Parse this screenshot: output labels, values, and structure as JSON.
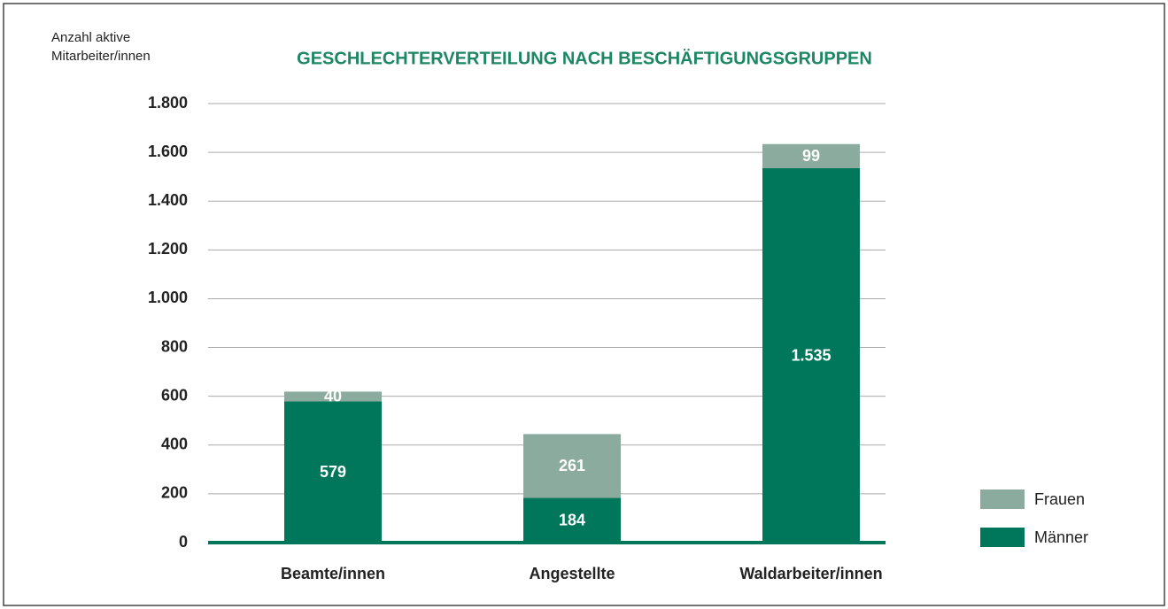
{
  "chart_data": {
    "type": "stacked_bar",
    "title": "GESCHLECHTERVERTEILUNG NACH BESCHÄFTIGUNGSGRUPPEN",
    "y_label": "Anzahl aktive Mitarbeiter/innen",
    "categories": [
      "Beamte/innen",
      "Angestellte",
      "Waldarbeiter/innen"
    ],
    "series": [
      {
        "name": "Männer",
        "color": "#00775a",
        "values": [
          579,
          184,
          1535
        ],
        "value_labels": [
          "579",
          "184",
          "1.535"
        ]
      },
      {
        "name": "Frauen",
        "color": "#8aab9d",
        "values": [
          40,
          261,
          99
        ]
      }
    ],
    "ylim": [
      0,
      1800
    ],
    "yticks": [
      0,
      200,
      400,
      600,
      800,
      {
        "value": 1000,
        "label": "1.000"
      },
      {
        "value": 1200,
        "label": "1.200"
      },
      {
        "value": 1400,
        "label": "1.400"
      },
      {
        "value": 1600,
        "label": "1.600"
      },
      {
        "value": 1800,
        "label": "1.800"
      }
    ],
    "grid": true,
    "legend": "right"
  }
}
